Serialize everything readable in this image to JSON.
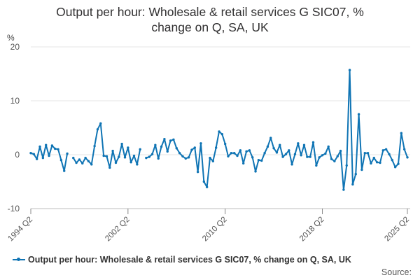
{
  "chart_data": {
    "type": "line",
    "title": "Output per hour: Wholesale & retail services G SIC07, % change on Q, SA, UK",
    "ylabel": "%",
    "ylim": [
      -10,
      20
    ],
    "yticks": [
      "20",
      "10",
      "0",
      "-10"
    ],
    "xticklabels": [
      "1994 Q2",
      "2002 Q2",
      "2010 Q2",
      "2018 Q2",
      "2025 Q2"
    ],
    "grid": true,
    "legend_position": "bottom",
    "color": "#0f74b4",
    "series": [
      {
        "name": "Output per hour: Wholesale & retail services G SIC07, % change on Q, SA, UK",
        "points": [
          {
            "x": "1994 Q2",
            "y": 0.3
          },
          {
            "x": "1994 Q3",
            "y": 0.1
          },
          {
            "x": "1994 Q4",
            "y": -0.8
          },
          {
            "x": "1995 Q1",
            "y": 1.5
          },
          {
            "x": "1995 Q2",
            "y": -0.6
          },
          {
            "x": "1995 Q3",
            "y": 1.8
          },
          {
            "x": "1995 Q4",
            "y": -0.2
          },
          {
            "x": "1996 Q1",
            "y": 1.7
          },
          {
            "x": "1996 Q2",
            "y": 1.1
          },
          {
            "x": "1996 Q3",
            "y": 1.0
          },
          {
            "x": "1996 Q4",
            "y": -1.0
          },
          {
            "x": "1997 Q1",
            "y": -3.0
          },
          {
            "x": "1997 Q2",
            "y": 0.2
          },
          {
            "x": "1997 Q3",
            "y": null
          },
          {
            "x": "1997 Q4",
            "y": -0.6
          },
          {
            "x": "1998 Q1",
            "y": -1.5
          },
          {
            "x": "1998 Q2",
            "y": -0.9
          },
          {
            "x": "1998 Q3",
            "y": -1.6
          },
          {
            "x": "1998 Q4",
            "y": -0.6
          },
          {
            "x": "1999 Q1",
            "y": -1.2
          },
          {
            "x": "1999 Q2",
            "y": -1.8
          },
          {
            "x": "1999 Q3",
            "y": 1.6
          },
          {
            "x": "1999 Q4",
            "y": 4.7
          },
          {
            "x": "2000 Q1",
            "y": 5.8
          },
          {
            "x": "2000 Q2",
            "y": -0.2
          },
          {
            "x": "2000 Q3",
            "y": -0.3
          },
          {
            "x": "2000 Q4",
            "y": -2.4
          },
          {
            "x": "2001 Q1",
            "y": 0.7
          },
          {
            "x": "2001 Q2",
            "y": -1.5
          },
          {
            "x": "2001 Q3",
            "y": -0.4
          },
          {
            "x": "2001 Q4",
            "y": 2.0
          },
          {
            "x": "2002 Q1",
            "y": -0.5
          },
          {
            "x": "2002 Q2",
            "y": 1.3
          },
          {
            "x": "2002 Q3",
            "y": -1.4
          },
          {
            "x": "2002 Q4",
            "y": -0.2
          },
          {
            "x": "2003 Q1",
            "y": -1.8
          },
          {
            "x": "2003 Q2",
            "y": 1.0
          },
          {
            "x": "2003 Q3",
            "y": null
          },
          {
            "x": "2003 Q4",
            "y": -0.6
          },
          {
            "x": "2004 Q1",
            "y": -0.4
          },
          {
            "x": "2004 Q2",
            "y": 0.1
          },
          {
            "x": "2004 Q3",
            "y": 1.8
          },
          {
            "x": "2004 Q4",
            "y": -0.7
          },
          {
            "x": "2005 Q1",
            "y": 1.5
          },
          {
            "x": "2005 Q2",
            "y": 2.9
          },
          {
            "x": "2005 Q3",
            "y": 0.6
          },
          {
            "x": "2005 Q4",
            "y": 2.6
          },
          {
            "x": "2006 Q1",
            "y": 2.8
          },
          {
            "x": "2006 Q2",
            "y": 1.2
          },
          {
            "x": "2006 Q3",
            "y": 0.3
          },
          {
            "x": "2006 Q4",
            "y": -0.3
          },
          {
            "x": "2007 Q1",
            "y": -0.7
          },
          {
            "x": "2007 Q2",
            "y": -0.5
          },
          {
            "x": "2007 Q3",
            "y": 0.9
          },
          {
            "x": "2007 Q4",
            "y": 1.3
          },
          {
            "x": "2008 Q1",
            "y": -3.2
          },
          {
            "x": "2008 Q2",
            "y": 2.1
          },
          {
            "x": "2008 Q3",
            "y": -5.0
          },
          {
            "x": "2008 Q4",
            "y": -6.0
          },
          {
            "x": "2009 Q1",
            "y": -0.6
          },
          {
            "x": "2009 Q2",
            "y": -1.2
          },
          {
            "x": "2009 Q3",
            "y": 1.3
          },
          {
            "x": "2009 Q4",
            "y": 4.3
          },
          {
            "x": "2010 Q1",
            "y": 3.8
          },
          {
            "x": "2010 Q2",
            "y": 2.0
          },
          {
            "x": "2010 Q3",
            "y": -0.3
          },
          {
            "x": "2010 Q4",
            "y": 0.3
          },
          {
            "x": "2011 Q1",
            "y": 0.3
          },
          {
            "x": "2011 Q2",
            "y": -0.2
          },
          {
            "x": "2011 Q3",
            "y": 0.8
          },
          {
            "x": "2011 Q4",
            "y": -1.6
          },
          {
            "x": "2012 Q1",
            "y": 0.6
          },
          {
            "x": "2012 Q2",
            "y": 0.8
          },
          {
            "x": "2012 Q3",
            "y": -0.5
          },
          {
            "x": "2012 Q4",
            "y": -3.1
          },
          {
            "x": "2013 Q1",
            "y": -1.0
          },
          {
            "x": "2013 Q2",
            "y": -1.1
          },
          {
            "x": "2013 Q3",
            "y": 0.3
          },
          {
            "x": "2013 Q4",
            "y": 1.5
          },
          {
            "x": "2014 Q1",
            "y": 3.1
          },
          {
            "x": "2014 Q2",
            "y": 1.2
          },
          {
            "x": "2014 Q3",
            "y": 0.4
          },
          {
            "x": "2014 Q4",
            "y": 1.8
          },
          {
            "x": "2015 Q1",
            "y": -0.4
          },
          {
            "x": "2015 Q2",
            "y": 0.1
          },
          {
            "x": "2015 Q3",
            "y": 0.8
          },
          {
            "x": "2015 Q4",
            "y": -1.8
          },
          {
            "x": "2016 Q1",
            "y": 0.1
          },
          {
            "x": "2016 Q2",
            "y": 2.1
          },
          {
            "x": "2016 Q3",
            "y": -0.1
          },
          {
            "x": "2016 Q4",
            "y": 1.8
          },
          {
            "x": "2017 Q1",
            "y": -0.4
          },
          {
            "x": "2017 Q2",
            "y": -0.4
          },
          {
            "x": "2017 Q3",
            "y": 2.3
          },
          {
            "x": "2017 Q4",
            "y": -2.0
          },
          {
            "x": "2018 Q1",
            "y": -0.5
          },
          {
            "x": "2018 Q2",
            "y": -0.1
          },
          {
            "x": "2018 Q3",
            "y": 0.2
          },
          {
            "x": "2018 Q4",
            "y": 1.5
          },
          {
            "x": "2019 Q1",
            "y": -0.8
          },
          {
            "x": "2019 Q2",
            "y": -1.2
          },
          {
            "x": "2019 Q3",
            "y": -0.3
          },
          {
            "x": "2019 Q4",
            "y": 0.7
          },
          {
            "x": "2020 Q1",
            "y": -6.5
          },
          {
            "x": "2020 Q2",
            "y": -2.0
          },
          {
            "x": "2020 Q3",
            "y": 15.7
          },
          {
            "x": "2020 Q4",
            "y": -5.5
          },
          {
            "x": "2021 Q1",
            "y": -3.6
          },
          {
            "x": "2021 Q2",
            "y": 7.5
          },
          {
            "x": "2021 Q3",
            "y": -2.8
          },
          {
            "x": "2021 Q4",
            "y": 0.3
          },
          {
            "x": "2022 Q1",
            "y": 0.3
          },
          {
            "x": "2022 Q2",
            "y": -1.6
          },
          {
            "x": "2022 Q3",
            "y": -0.6
          },
          {
            "x": "2022 Q4",
            "y": -1.4
          },
          {
            "x": "2023 Q1",
            "y": -1.5
          },
          {
            "x": "2023 Q2",
            "y": 0.8
          },
          {
            "x": "2023 Q3",
            "y": 1.0
          },
          {
            "x": "2023 Q4",
            "y": 0.1
          },
          {
            "x": "2024 Q1",
            "y": -1.0
          },
          {
            "x": "2024 Q2",
            "y": -2.3
          },
          {
            "x": "2024 Q3",
            "y": -1.7
          },
          {
            "x": "2024 Q4",
            "y": 4.0
          },
          {
            "x": "2025 Q1",
            "y": 1.0
          },
          {
            "x": "2025 Q2",
            "y": -0.5
          }
        ]
      }
    ]
  },
  "legend_label": "Output per hour: Wholesale & retail services G SIC07, % change on Q, SA, UK",
  "source_label": "Source:",
  "title_line1": "Output per hour: Wholesale & retail services G SIC07, %",
  "title_line2": "change on Q, SA, UK"
}
